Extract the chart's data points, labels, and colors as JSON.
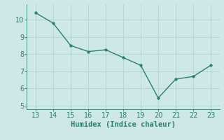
{
  "x": [
    13,
    14,
    15,
    16,
    17,
    18,
    19,
    20,
    21,
    22,
    23
  ],
  "y": [
    10.4,
    9.8,
    8.5,
    8.15,
    8.25,
    7.8,
    7.35,
    5.45,
    6.55,
    6.7,
    7.35
  ],
  "line_color": "#2e7d6e",
  "marker": "o",
  "marker_size": 2.5,
  "background_color": "#cde8e5",
  "grid_color": "#aed4d1",
  "xlabel": "Humidex (Indice chaleur)",
  "xlabel_fontsize": 7.5,
  "xlim": [
    12.5,
    23.5
  ],
  "ylim": [
    4.8,
    10.9
  ],
  "xticks": [
    13,
    14,
    15,
    16,
    17,
    18,
    19,
    20,
    21,
    22,
    23
  ],
  "yticks": [
    5,
    6,
    7,
    8,
    9,
    10
  ],
  "tick_fontsize": 7,
  "tick_color": "#2e7d6e",
  "spine_color": "#2e7d6e",
  "line_width": 1.0
}
